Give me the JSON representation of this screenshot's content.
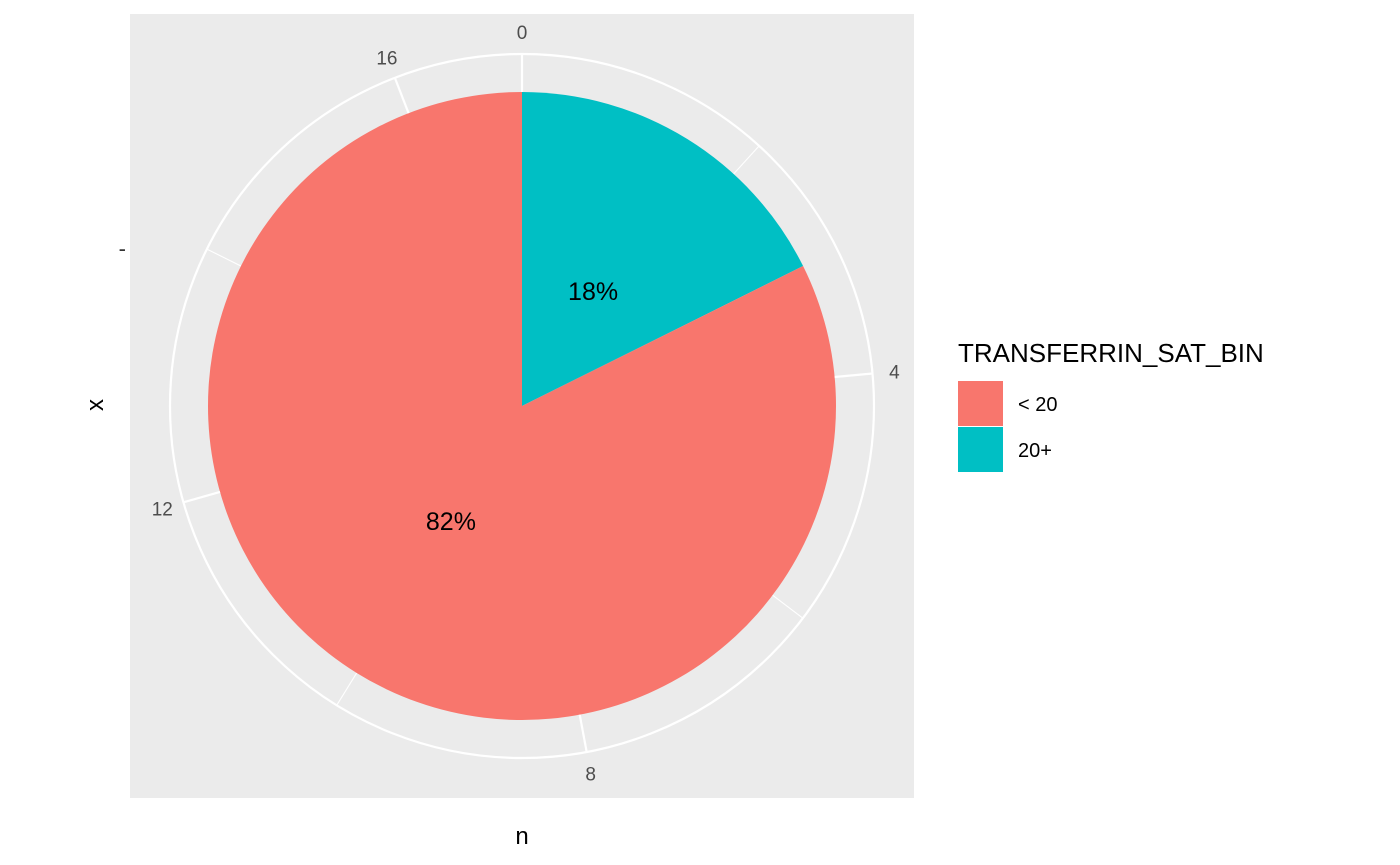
{
  "chart_data": {
    "type": "pie",
    "categories": [
      "< 20",
      "20+"
    ],
    "values": [
      14,
      3
    ],
    "percent_labels": [
      "82%",
      "18%"
    ],
    "colors": [
      "#F8766D",
      "#00BFC4"
    ],
    "panel_background": "#EBEBEB",
    "grid_color": "#FFFFFF",
    "theta_ticks": [
      0,
      4,
      8,
      12,
      16
    ],
    "theta_tick_labels": [
      "0",
      "4",
      "8",
      "12",
      "16"
    ],
    "x_axis_title": "n",
    "y_axis_title": "x",
    "y_tick_label": "-",
    "legend": {
      "title": "TRANSFERRIN_SAT_BIN",
      "position": "right",
      "entries": [
        "< 20",
        "20+"
      ]
    }
  }
}
